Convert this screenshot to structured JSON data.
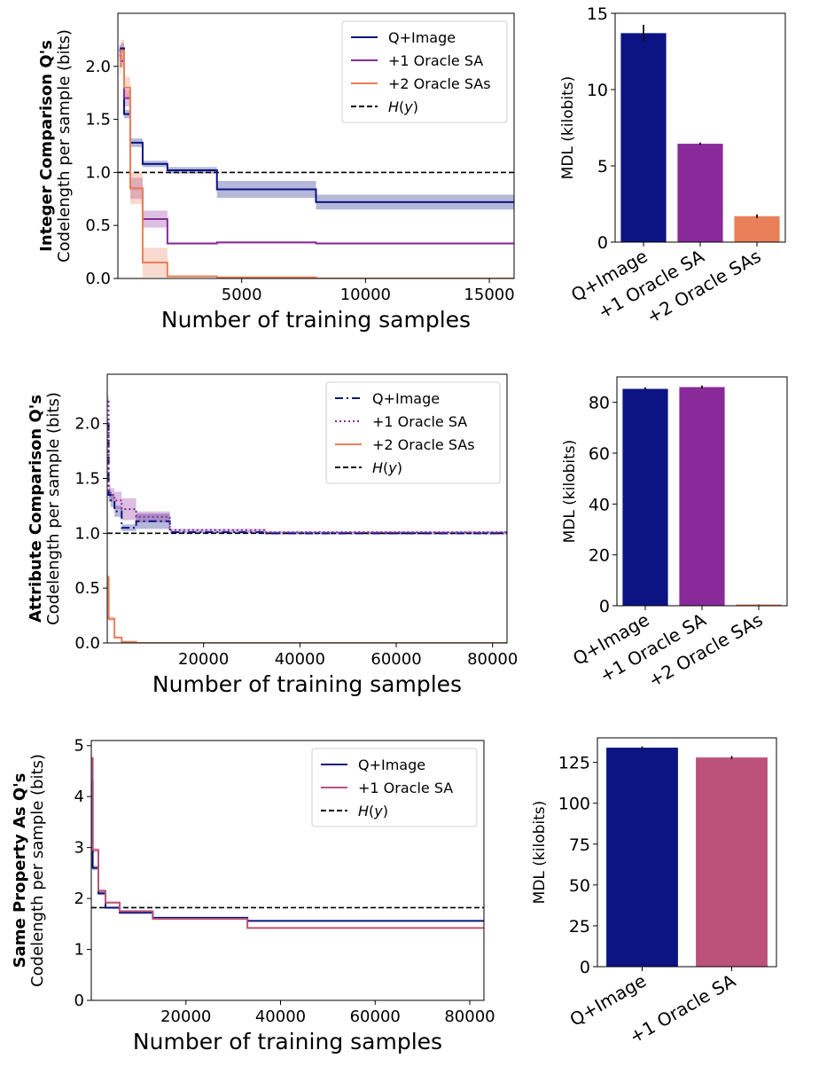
{
  "chart_data": [
    {
      "type": "line",
      "ylabel_bold": "Integer Comparison Q's",
      "ylabel": "Codelength per sample (bits)",
      "xlabel": "Number of training samples",
      "xlim": [
        0,
        16000
      ],
      "ylim": [
        0,
        2.5
      ],
      "xticks": [
        5000,
        10000,
        15000
      ],
      "xtick_labels": [
        "5000",
        "10000",
        "15000"
      ],
      "yticks": [
        0,
        0.5,
        1.0,
        1.5,
        2.0
      ],
      "ytick_labels": [
        "0.0",
        "0.5",
        "1.0",
        "1.5",
        "2.0"
      ],
      "grid": false,
      "legend_position": "top-right",
      "legend": [
        "Q+Image",
        "+1 Oracle SA",
        "+2 Oracle SAs",
        "H(y)"
      ],
      "hline": {
        "name": "H(y)",
        "y": 1.0
      },
      "series": [
        {
          "name": "Q+Image",
          "color": "#0b1482",
          "dash": "solid",
          "x": [
            60,
            120,
            250,
            500,
            1000,
            2000,
            4000,
            8000,
            16000
          ],
          "y": [
            2.15,
            2.17,
            1.55,
            1.28,
            1.08,
            1.02,
            0.84,
            0.72,
            0.72
          ],
          "band": [
            0.05,
            0.05,
            0.04,
            0.04,
            0.03,
            0.03,
            0.08,
            0.07,
            0.07
          ]
        },
        {
          "name": "+1 Oracle SA",
          "color": "#8a2a9a",
          "dash": "solid",
          "x": [
            60,
            120,
            250,
            500,
            1000,
            2000,
            4000,
            8000,
            16000
          ],
          "y": [
            2.1,
            2.05,
            1.7,
            0.85,
            0.56,
            0.33,
            0.34,
            0.33,
            0.33
          ],
          "band": [
            0.06,
            0.06,
            0.08,
            0.1,
            0.08,
            0.01,
            0.01,
            0.01,
            0.01
          ]
        },
        {
          "name": "+2 Oracle SAs",
          "color": "#e98059",
          "dash": "solid",
          "x": [
            60,
            120,
            250,
            500,
            1000,
            2000,
            4000,
            8000,
            16000
          ],
          "y": [
            2.0,
            2.15,
            1.8,
            0.85,
            0.15,
            0.02,
            0.01,
            0.0,
            0.0
          ],
          "band": [
            0.08,
            0.1,
            0.1,
            0.15,
            0.14,
            0.01,
            0.0,
            0.0,
            0.0
          ]
        }
      ]
    },
    {
      "type": "bar",
      "ylabel": "MDL (kilobits)",
      "categories": [
        "Q+Image",
        "+1 Oracle SA",
        "+2 Oracle SAs"
      ],
      "values": [
        13.7,
        6.45,
        1.7
      ],
      "errors": [
        0.55,
        0.08,
        0.12
      ],
      "colors": [
        "#0b1482",
        "#8a2a9a",
        "#e98059"
      ],
      "ylim": [
        0,
        15
      ],
      "yticks": [
        0,
        5,
        10,
        15
      ],
      "ytick_labels": [
        "0",
        "5",
        "10",
        "15"
      ]
    },
    {
      "type": "line",
      "ylabel_bold": "Attribute Comparison Q's",
      "ylabel": "Codelength per sample (bits)",
      "xlabel": "Number of training samples",
      "xlim": [
        0,
        83000
      ],
      "ylim": [
        0,
        2.45
      ],
      "xticks": [
        20000,
        40000,
        60000,
        80000
      ],
      "xtick_labels": [
        "20000",
        "40000",
        "60000",
        "80000"
      ],
      "yticks": [
        0,
        0.5,
        1.0,
        1.5,
        2.0
      ],
      "ytick_labels": [
        "0.0",
        "0.5",
        "1.0",
        "1.5",
        "2.0"
      ],
      "grid": false,
      "legend_position": "top-right",
      "legend": [
        "Q+Image",
        "+1 Oracle SA",
        "+2 Oracle SAs",
        "H(y)"
      ],
      "hline": {
        "name": "H(y)",
        "y": 1.0
      },
      "series": [
        {
          "name": "Q+Image",
          "color": "#0b1482",
          "dash": "dashdot",
          "x": [
            100,
            300,
            700,
            1500,
            3000,
            6000,
            13000,
            33000,
            83000
          ],
          "y": [
            2.0,
            1.35,
            1.3,
            1.2,
            1.05,
            1.11,
            1.01,
            1.0,
            1.0
          ],
          "band": [
            0.05,
            0.06,
            0.06,
            0.05,
            0.03,
            0.07,
            0.01,
            0.01,
            0.01
          ]
        },
        {
          "name": "+1 Oracle SA",
          "color": "#8a2a9a",
          "dash": "dotted",
          "x": [
            100,
            300,
            700,
            1500,
            3000,
            6000,
            13000,
            33000,
            83000
          ],
          "y": [
            2.2,
            1.38,
            1.35,
            1.3,
            1.22,
            1.15,
            1.03,
            1.01,
            1.0
          ],
          "band": [
            0.05,
            0.06,
            0.06,
            0.08,
            0.1,
            0.05,
            0.01,
            0.01,
            0.01
          ]
        },
        {
          "name": "+2 Oracle SAs",
          "color": "#e98059",
          "dash": "solid",
          "x": [
            100,
            300,
            700,
            1500,
            3000,
            6000,
            13000,
            33000,
            83000
          ],
          "y": [
            0.6,
            0.22,
            0.22,
            0.05,
            0.01,
            0.0,
            0.0,
            0.0,
            0.0
          ],
          "band": [
            0.03,
            0.02,
            0.02,
            0.01,
            0.0,
            0.0,
            0.0,
            0.0,
            0.0
          ]
        }
      ]
    },
    {
      "type": "bar",
      "ylabel": "MDL (kilobits)",
      "categories": [
        "Q+Image",
        "+1 Oracle SA",
        "+2 Oracle SAs"
      ],
      "values": [
        85.3,
        86.0,
        0.5
      ],
      "errors": [
        0.6,
        0.6,
        0.05
      ],
      "colors": [
        "#0b1482",
        "#8a2a9a",
        "#e98059"
      ],
      "ylim": [
        0,
        90
      ],
      "yticks": [
        0,
        20,
        40,
        60,
        80
      ],
      "ytick_labels": [
        "0",
        "20",
        "40",
        "60",
        "80"
      ]
    },
    {
      "type": "line",
      "ylabel_bold": "Same Property As Q's",
      "ylabel": "Codelength per sample (bits)",
      "xlabel": "Number of training samples",
      "xlim": [
        0,
        83000
      ],
      "ylim": [
        0,
        5.1
      ],
      "xticks": [
        20000,
        40000,
        60000,
        80000
      ],
      "xtick_labels": [
        "20000",
        "40000",
        "60000",
        "80000"
      ],
      "yticks": [
        0,
        1,
        2,
        3,
        4,
        5
      ],
      "ytick_labels": [
        "0",
        "1",
        "2",
        "3",
        "4",
        "5"
      ],
      "grid": false,
      "legend_position": "top-right",
      "legend": [
        "Q+Image",
        "+1 Oracle SA",
        "H(y)"
      ],
      "hline": {
        "name": "H(y)",
        "y": 1.82
      },
      "series": [
        {
          "name": "Q+Image",
          "color": "#0b1482",
          "dash": "solid",
          "x": [
            100,
            300,
            700,
            1500,
            3000,
            6000,
            13000,
            33000,
            83000
          ],
          "y": [
            4.3,
            2.6,
            2.6,
            2.1,
            1.82,
            1.72,
            1.62,
            1.56,
            1.56
          ],
          "band": [
            0.05,
            0.05,
            0.04,
            0.03,
            0.02,
            0.02,
            0.01,
            0.01,
            0.01
          ]
        },
        {
          "name": "+1 Oracle SA",
          "color": "#bc527a",
          "dash": "solid",
          "x": [
            100,
            300,
            700,
            1500,
            3000,
            6000,
            13000,
            33000,
            83000
          ],
          "y": [
            4.75,
            2.95,
            2.95,
            2.15,
            1.92,
            1.75,
            1.6,
            1.42,
            1.42
          ],
          "band": [
            0.05,
            0.05,
            0.04,
            0.03,
            0.02,
            0.02,
            0.01,
            0.01,
            0.01
          ]
        }
      ]
    },
    {
      "type": "bar",
      "ylabel": "MDL (kilobits)",
      "categories": [
        "Q+Image",
        "+1 Oracle SA"
      ],
      "values": [
        134.0,
        128.0
      ],
      "errors": [
        0.8,
        0.9
      ],
      "colors": [
        "#0b1482",
        "#bc527a"
      ],
      "ylim": [
        0,
        140
      ],
      "yticks": [
        0,
        25,
        50,
        75,
        100,
        125
      ],
      "ytick_labels": [
        "0",
        "25",
        "50",
        "75",
        "100",
        "125"
      ]
    }
  ]
}
